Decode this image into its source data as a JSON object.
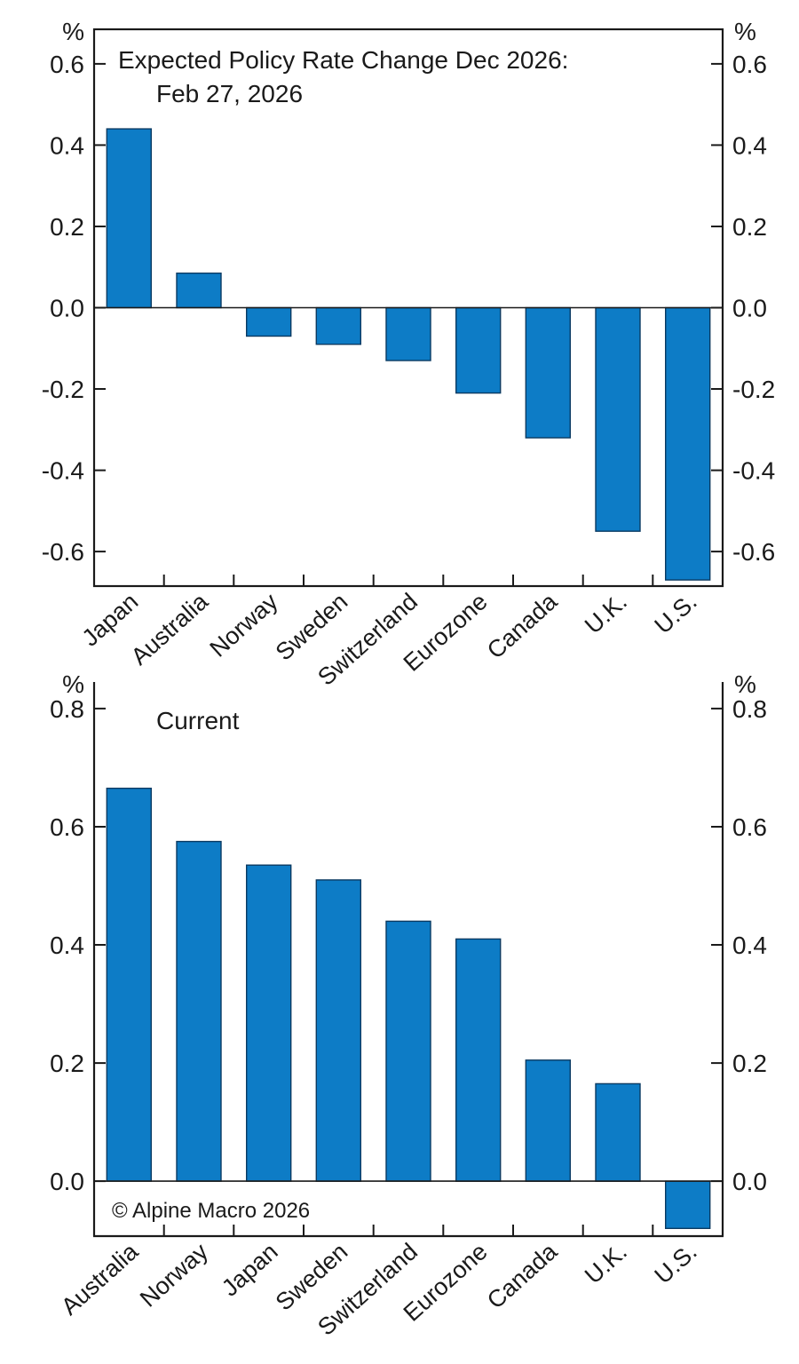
{
  "colors": {
    "bar_fill": "#0D7CC6",
    "bar_edge": "#0A3A62",
    "axis": "#1A1A1A",
    "text": "#1A1A1A",
    "background": "#FFFFFF"
  },
  "chart_data": [
    {
      "id": "expected-change",
      "type": "bar",
      "title": "Expected Policy Rate Change Dec 2026:",
      "subtitle": "Feb 27, 2026",
      "unit": "%",
      "categories": [
        "Japan",
        "Australia",
        "Norway",
        "Sweden",
        "Switzerland",
        "Eurozone",
        "Canada",
        "U.K.",
        "U.S."
      ],
      "values": [
        0.44,
        0.085,
        -0.07,
        -0.09,
        -0.13,
        -0.21,
        -0.32,
        -0.55,
        -0.67
      ],
      "yticks": [
        0.6,
        0.4,
        0.2,
        0.0,
        -0.2,
        -0.4,
        -0.6
      ],
      "ylim": [
        -0.685,
        0.685
      ],
      "frame": "closed-box",
      "grid": false,
      "legend": "none",
      "ylabel_left": "%",
      "ylabel_right": "%"
    },
    {
      "id": "current",
      "type": "bar",
      "title": "Current",
      "subtitle": "",
      "unit": "%",
      "categories": [
        "Australia",
        "Norway",
        "Japan",
        "Sweden",
        "Switzerland",
        "Eurozone",
        "Canada",
        "U.K.",
        "U.S."
      ],
      "values": [
        0.665,
        0.575,
        0.535,
        0.51,
        0.44,
        0.41,
        0.205,
        0.165,
        -0.08
      ],
      "yticks": [
        0.8,
        0.6,
        0.4,
        0.2,
        0.0
      ],
      "ylim": [
        -0.093,
        0.845
      ],
      "frame": "open-top",
      "grid": false,
      "legend": "none",
      "ylabel_left": "%",
      "ylabel_right": "%",
      "credit": "© Alpine Macro 2026"
    }
  ]
}
